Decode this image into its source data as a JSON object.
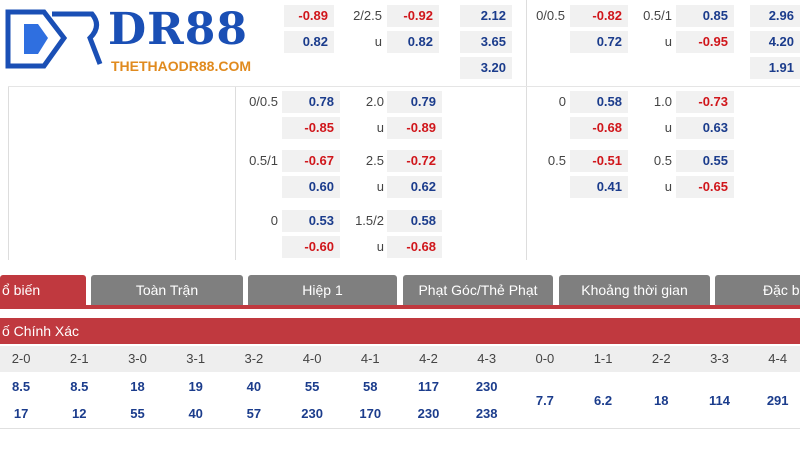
{
  "logo": {
    "brand": "DR88",
    "site": "THETHAODR88.COM"
  },
  "top_rows": {
    "left_block": {
      "rows": [
        {
          "odds1": "-0.89",
          "handicap2": "2/2.5",
          "odds2": "-0.92",
          "x12": "2.12"
        },
        {
          "odds1": "0.82",
          "handicap2": "u",
          "odds2": "0.82",
          "x12": "3.65"
        },
        {
          "x12": "3.20"
        }
      ]
    },
    "right_block": {
      "rows": [
        {
          "handicap1": "0/0.5",
          "odds1": "-0.82",
          "handicap2": "0.5/1",
          "odds2": "0.85",
          "x12": "2.96"
        },
        {
          "odds1": "0.72",
          "handicap2": "u",
          "odds2": "-0.95",
          "x12": "4.20"
        },
        {
          "x12": "1.91"
        }
      ]
    }
  },
  "more_lines": {
    "left": [
      {
        "h1": "0/0.5",
        "o1a": "0.78",
        "o1b": "-0.85",
        "h2": "2.0",
        "o2a": "0.79",
        "u": "u",
        "o2b": "-0.89"
      },
      {
        "h1": "0.5/1",
        "o1a": "-0.67",
        "o1b": "0.60",
        "h2": "2.5",
        "o2a": "-0.72",
        "u": "u",
        "o2b": "0.62"
      },
      {
        "h1": "0",
        "o1a": "0.53",
        "o1b": "-0.60",
        "h2": "1.5/2",
        "o2a": "0.58",
        "u": "u",
        "o2b": "-0.68"
      }
    ],
    "right": [
      {
        "h1": "0",
        "o1a": "0.58",
        "o1b": "-0.68",
        "h2": "1.0",
        "o2a": "-0.73",
        "u": "u",
        "o2b": "0.63"
      },
      {
        "h1": "0.5",
        "o1a": "-0.51",
        "o1b": "0.41",
        "h2": "0.5",
        "o2a": "0.55",
        "u": "u",
        "o2b": "-0.65"
      }
    ]
  },
  "tabs": [
    {
      "label": "ổ biến",
      "active": true
    },
    {
      "label": "Toàn Trận"
    },
    {
      "label": "Hiệp 1"
    },
    {
      "label": "Phạt Góc/Thẻ Phạt"
    },
    {
      "label": "Khoảng thời gian"
    },
    {
      "label": "Đặc b"
    }
  ],
  "section": {
    "title": "ố Chính Xác"
  },
  "score_table": {
    "headers": [
      "2-0",
      "2-1",
      "3-0",
      "3-1",
      "3-2",
      "4-0",
      "4-1",
      "4-2",
      "4-3",
      "0-0",
      "1-1",
      "2-2",
      "3-3",
      "4-4"
    ],
    "home": [
      "8.5",
      "8.5",
      "18",
      "19",
      "40",
      "55",
      "58",
      "117",
      "230",
      "7.7",
      "6.2",
      "18",
      "114",
      "291"
    ],
    "away": [
      "17",
      "12",
      "55",
      "40",
      "57",
      "230",
      "170",
      "230",
      "238",
      "",
      "",
      "",
      "",
      ""
    ]
  },
  "colors": {
    "positive": "#1b3c8c",
    "negative": "#d0161b",
    "accent": "#c0393f",
    "tab_inactive": "#7f7f7f"
  }
}
